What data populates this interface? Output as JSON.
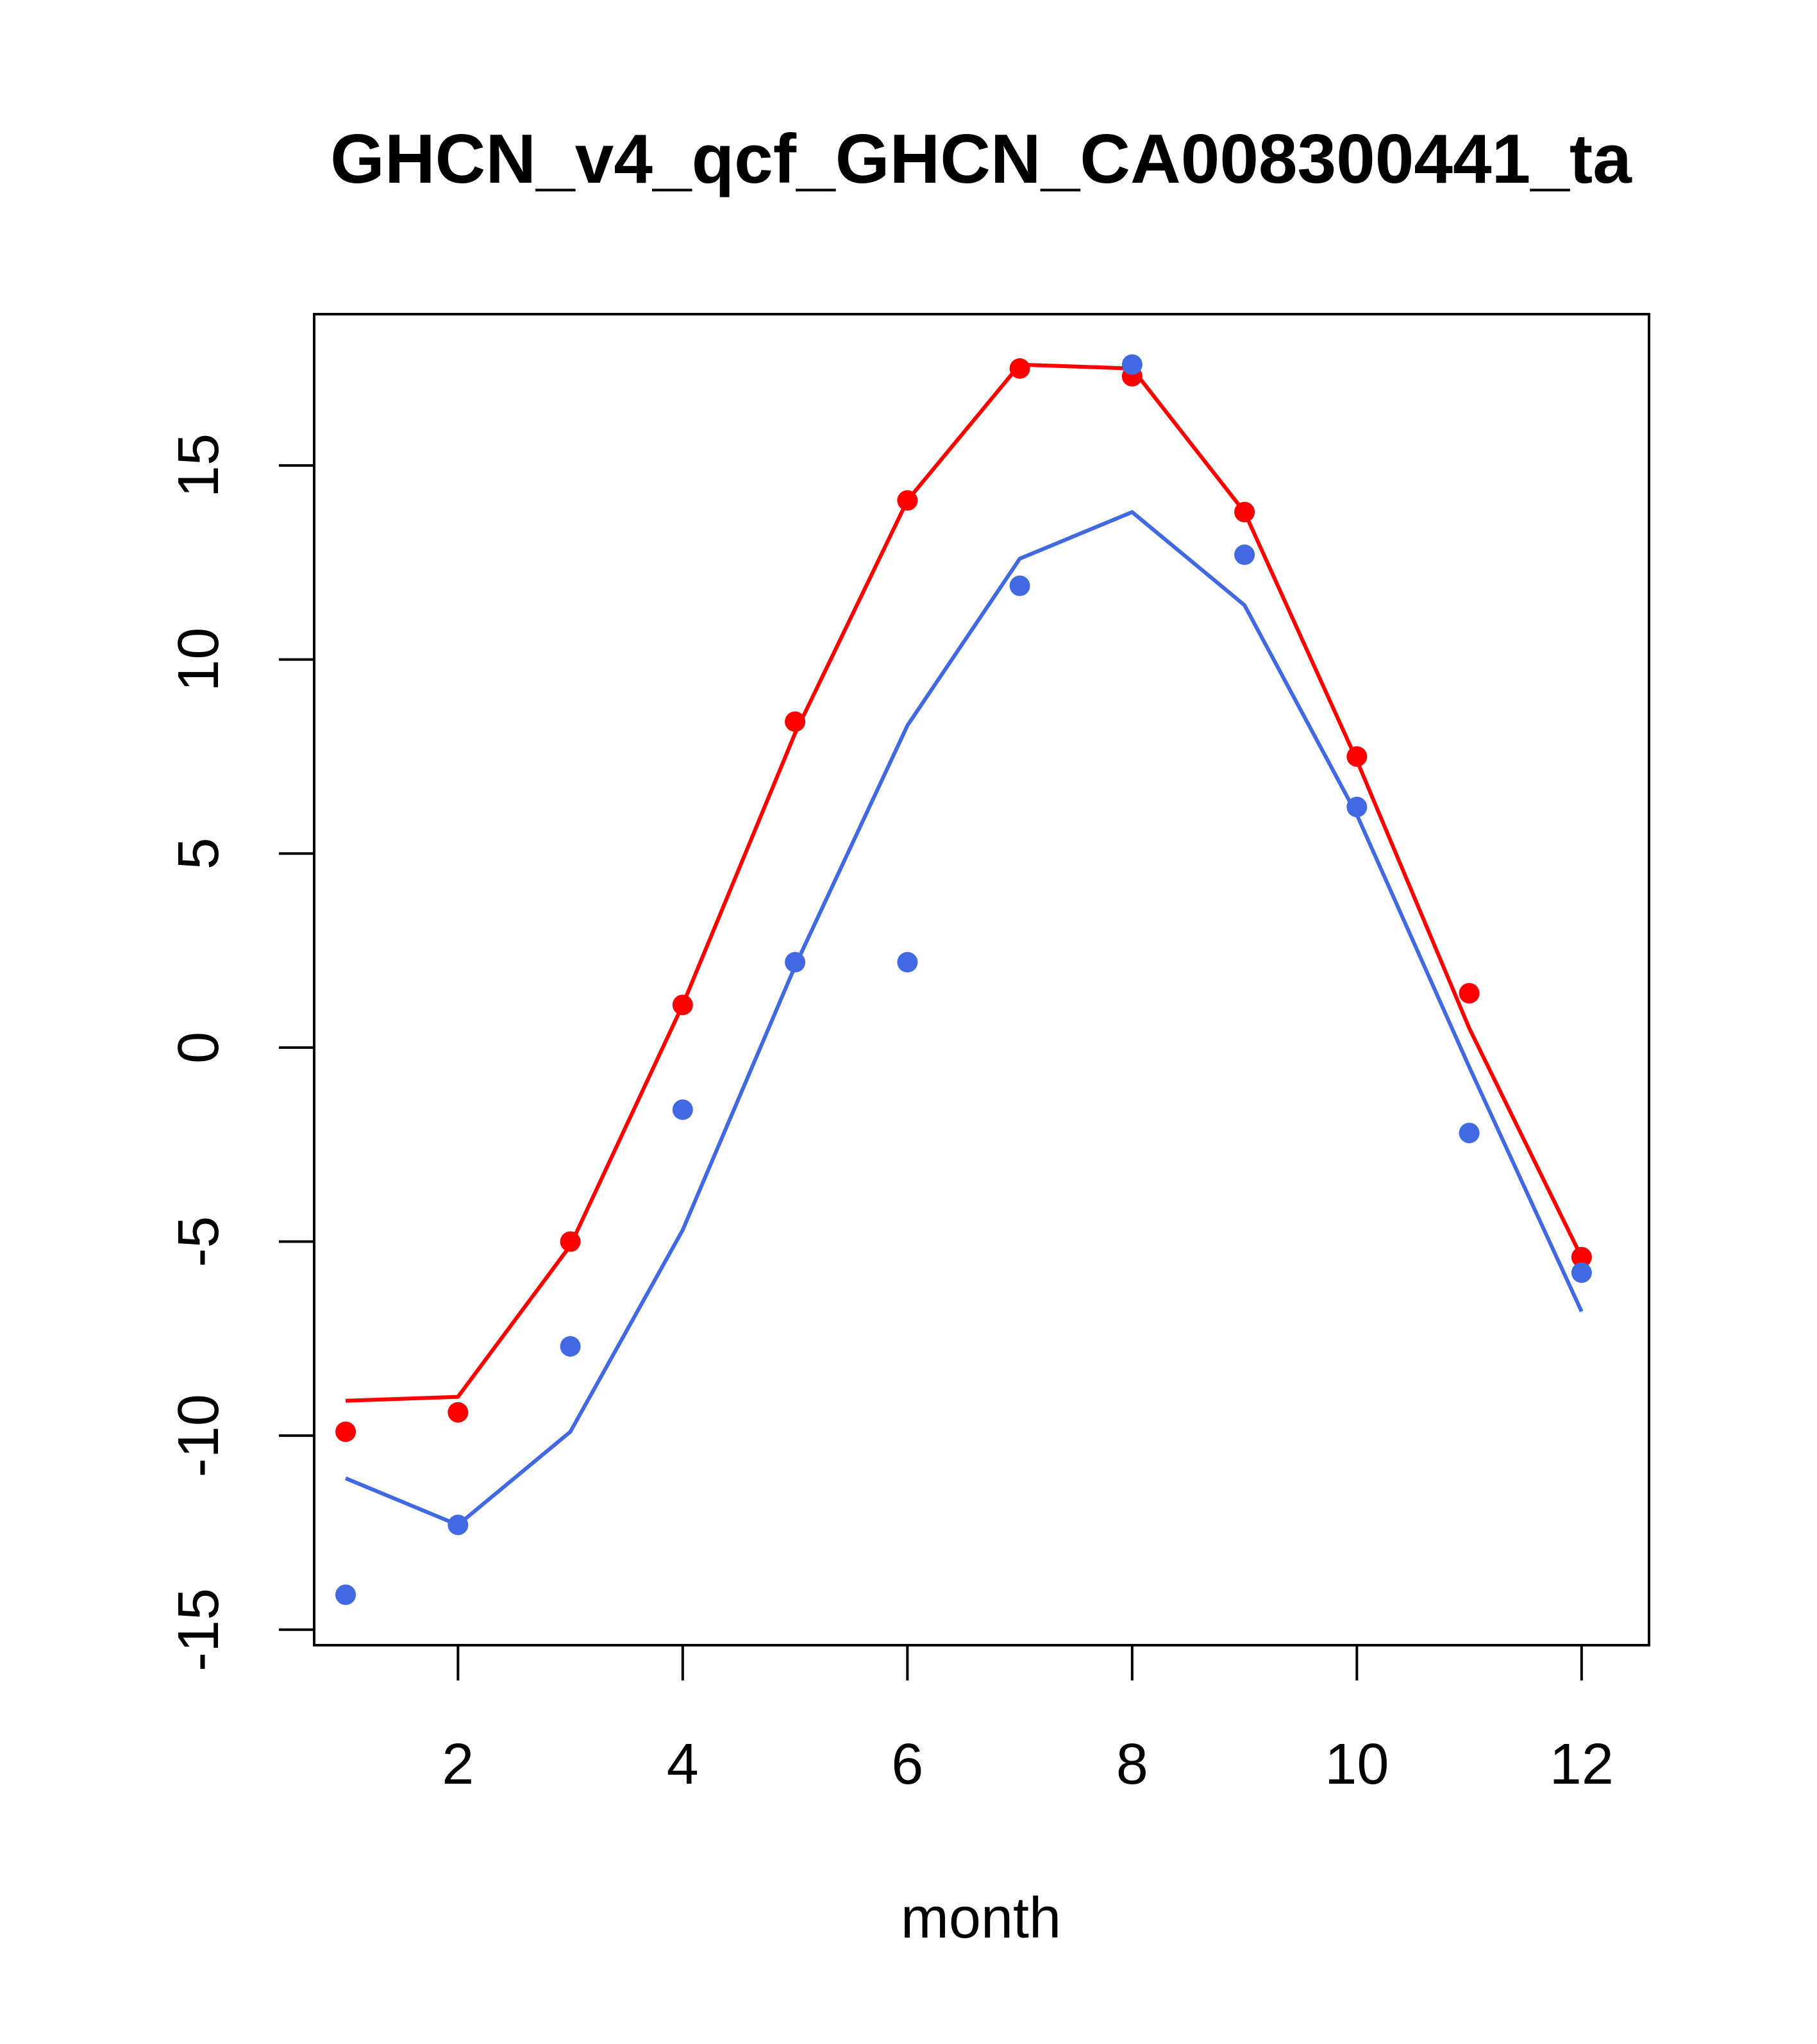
{
  "chart_data": {
    "type": "line",
    "title": "GHCN_v4_qcf_GHCN_CA008300441_ta",
    "xlabel": "month",
    "ylabel": "",
    "xlim": [
      0.72,
      12.6
    ],
    "ylim": [
      -15.4,
      18.9
    ],
    "x_ticks": [
      2,
      4,
      6,
      8,
      10,
      12
    ],
    "y_ticks": [
      -15,
      -10,
      -5,
      0,
      5,
      10,
      15
    ],
    "x_tick_labels": [
      "2",
      "4",
      "6",
      "8",
      "10",
      "12"
    ],
    "y_tick_labels": [
      "-15",
      "-10",
      "-5",
      "0",
      "5",
      "10",
      "15"
    ],
    "grid": false,
    "legend": "none",
    "x": [
      1,
      2,
      3,
      4,
      5,
      6,
      7,
      8,
      9,
      10,
      11,
      12
    ],
    "series": [
      {
        "color": "#ff0000",
        "line": [
          -9.1,
          -9.0,
          -5.1,
          1.1,
          8.1,
          14.1,
          17.6,
          17.5,
          13.8,
          7.4,
          0.5,
          -5.4
        ],
        "points": [
          -9.9,
          -9.4,
          -5.0,
          1.1,
          8.4,
          14.1,
          17.5,
          17.3,
          13.8,
          7.5,
          1.4,
          -5.4
        ]
      },
      {
        "color": "#4169e1",
        "line": [
          -11.1,
          -12.3,
          -9.9,
          -4.7,
          2.1,
          8.3,
          12.6,
          13.8,
          11.4,
          6.0,
          -0.5,
          -6.8
        ],
        "points": [
          -14.1,
          -12.3,
          -7.7,
          -1.6,
          2.2,
          2.2,
          11.9,
          17.6,
          12.7,
          6.2,
          -2.2,
          -5.8
        ]
      }
    ]
  }
}
